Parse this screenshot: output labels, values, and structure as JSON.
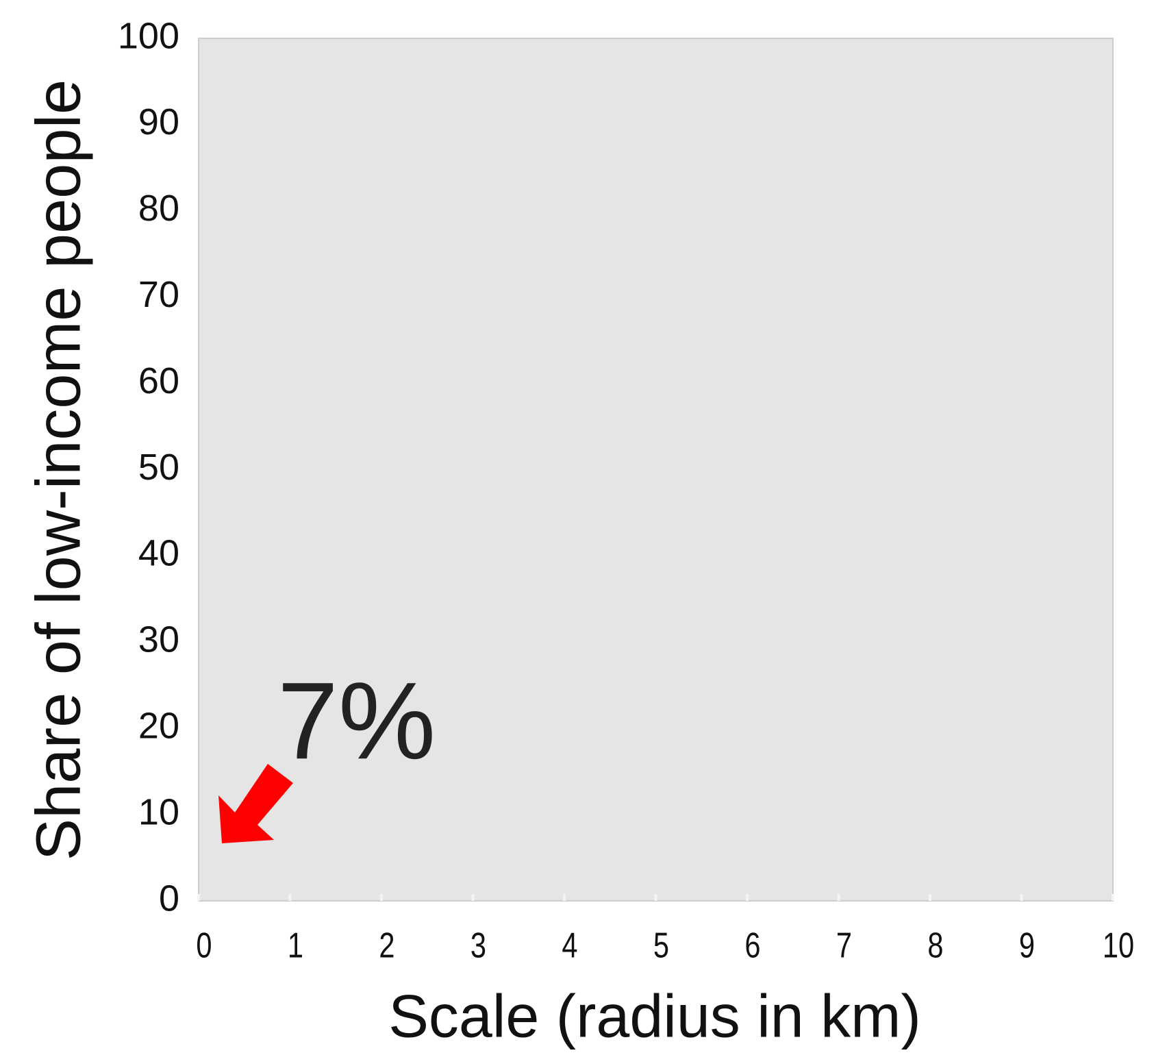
{
  "chart_data": {
    "type": "scatter",
    "x_label": "Scale (radius in km)",
    "y_label": "Share of low-income people",
    "annotation": "7%",
    "xlim": [
      0,
      10
    ],
    "xticks": [
      0,
      1,
      2,
      3,
      4,
      5,
      6,
      7,
      8,
      9,
      10
    ],
    "ylim": [
      0,
      100
    ],
    "yticks": [
      0,
      10,
      20,
      30,
      40,
      50,
      60,
      70,
      80,
      90,
      100
    ],
    "grid": false,
    "series": []
  }
}
